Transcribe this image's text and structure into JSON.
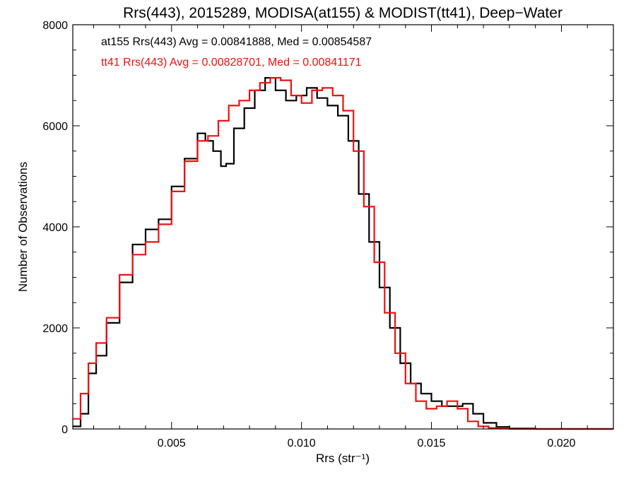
{
  "chart_data": {
    "type": "line",
    "title": "Rrs(443), 2015289, MODISA(at155) & MODIST(tt41), Deep−Water",
    "xlabel": "Rrs (str⁻¹)",
    "ylabel": "Number of Observations",
    "xlim": [
      0.0012,
      0.022
    ],
    "ylim": [
      0,
      8000
    ],
    "x_ticks": [
      0.005,
      0.01,
      0.015,
      0.02
    ],
    "x_tick_labels": [
      "0.005",
      "0.010",
      "0.015",
      "0.020"
    ],
    "y_ticks": [
      0,
      2000,
      4000,
      6000,
      8000
    ],
    "y_tick_labels": [
      "0",
      "2000",
      "4000",
      "6000",
      "8000"
    ],
    "grid": false,
    "step": true,
    "annotations": [
      {
        "text": "at155 Rrs(443) Avg = 0.00841888, Med = 0.00854587",
        "color": "#000000"
      },
      {
        "text": "tt41 Rrs(443) Avg = 0.00828701, Med = 0.00841171",
        "color": "#ee1111"
      }
    ],
    "series": [
      {
        "color": "#000000",
        "x": [
          0.0012,
          0.0015,
          0.0018,
          0.0021,
          0.0025,
          0.003,
          0.0035,
          0.004,
          0.0045,
          0.005,
          0.0055,
          0.006,
          0.0063,
          0.0066,
          0.0069,
          0.0071,
          0.0074,
          0.0078,
          0.0082,
          0.0086,
          0.009,
          0.0094,
          0.0098,
          0.0102,
          0.0106,
          0.011,
          0.0114,
          0.0118,
          0.0122,
          0.0126,
          0.013,
          0.0134,
          0.0138,
          0.0142,
          0.0146,
          0.015,
          0.0154,
          0.0158,
          0.0162,
          0.0166,
          0.017,
          0.0175,
          0.018,
          0.019,
          0.02,
          0.022
        ],
        "y": [
          50,
          300,
          1100,
          1450,
          2100,
          2900,
          3650,
          3950,
          4150,
          4800,
          5350,
          5850,
          5700,
          5500,
          5200,
          5250,
          5950,
          6350,
          6700,
          6950,
          6700,
          6500,
          6600,
          6750,
          6550,
          6400,
          6200,
          5700,
          4650,
          3700,
          2800,
          2000,
          1300,
          900,
          700,
          550,
          450,
          450,
          500,
          300,
          120,
          40,
          10,
          0,
          0,
          0
        ]
      },
      {
        "color": "#ee1111",
        "x": [
          0.0012,
          0.0015,
          0.0018,
          0.0021,
          0.0025,
          0.003,
          0.0035,
          0.004,
          0.0045,
          0.005,
          0.0055,
          0.006,
          0.0064,
          0.0068,
          0.0072,
          0.0076,
          0.008,
          0.0084,
          0.0088,
          0.0092,
          0.0096,
          0.01,
          0.0104,
          0.0108,
          0.0112,
          0.0116,
          0.012,
          0.0124,
          0.0128,
          0.0132,
          0.0136,
          0.014,
          0.0144,
          0.0148,
          0.0152,
          0.0156,
          0.016,
          0.0164,
          0.0168,
          0.0172,
          0.018,
          0.02,
          0.022
        ],
        "y": [
          200,
          700,
          1300,
          1700,
          2200,
          3050,
          3450,
          3700,
          4050,
          4700,
          5300,
          5700,
          5800,
          6100,
          6400,
          6500,
          6700,
          6850,
          6950,
          6900,
          6600,
          6450,
          6700,
          6750,
          6600,
          6300,
          5500,
          4400,
          3300,
          2300,
          1500,
          900,
          550,
          400,
          450,
          550,
          400,
          150,
          50,
          20,
          0,
          0,
          0
        ]
      }
    ]
  }
}
